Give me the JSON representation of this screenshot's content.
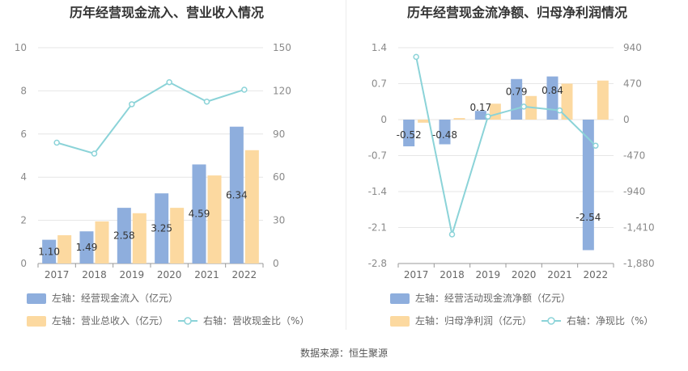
{
  "source_label": "数据来源：恒生聚源",
  "chart_data": [
    {
      "type": "bar",
      "title": "历年经营现金流入、营业收入情况",
      "categories": [
        "2017",
        "2018",
        "2019",
        "2020",
        "2021",
        "2022"
      ],
      "y_left": {
        "ylim": [
          0,
          10
        ],
        "ticks": [
          0,
          2,
          4,
          6,
          8,
          10
        ]
      },
      "y_right": {
        "ylim": [
          0,
          150
        ],
        "ticks": [
          0,
          30,
          60,
          90,
          120,
          150
        ]
      },
      "series": [
        {
          "name": "左轴：经营现金流入（亿元）",
          "type": "bar",
          "axis": "left",
          "color": "#8eaedd",
          "values": [
            1.1,
            1.49,
            2.58,
            3.25,
            4.59,
            6.34
          ],
          "labels": [
            "1.10",
            "1.49",
            "2.58",
            "3.25",
            "4.59",
            "6.34"
          ]
        },
        {
          "name": "左轴：营业总收入（亿元）",
          "type": "bar",
          "axis": "left",
          "color": "#fcd9a0",
          "values": [
            1.31,
            1.95,
            2.33,
            2.58,
            4.08,
            5.25
          ]
        },
        {
          "name": "右轴：营收现金比（%）",
          "type": "line",
          "axis": "right",
          "color": "#8bd3d8",
          "values": [
            84.0,
            76.4,
            110.7,
            126.0,
            112.5,
            120.8
          ]
        }
      ],
      "legend_position": "bottom",
      "grid": true
    },
    {
      "type": "bar",
      "title": "历年经营现金流净额、归母净利润情况",
      "categories": [
        "2017",
        "2018",
        "2019",
        "2020",
        "2021",
        "2022"
      ],
      "y_left": {
        "ylim": [
          -2.8,
          1.4
        ],
        "ticks": [
          1.4,
          0.7,
          0,
          -0.7,
          -1.4,
          -2.1,
          -2.8
        ],
        "tick_labels": [
          "1.4",
          "0.7",
          "0",
          "-0.7",
          "-1.4",
          "-2.1",
          "-2.8"
        ]
      },
      "y_right": {
        "ylim": [
          -1880,
          940
        ],
        "ticks": [
          940,
          470,
          0,
          -470,
          -940,
          -1410,
          -1880
        ],
        "tick_labels": [
          "940",
          "470",
          "0",
          "-470",
          "-940",
          "-1,410",
          "-1,880"
        ]
      },
      "series": [
        {
          "name": "左轴：经营活动现金流净额（亿元）",
          "type": "bar",
          "axis": "left",
          "color": "#8eaedd",
          "values": [
            -0.52,
            -0.48,
            0.17,
            0.79,
            0.84,
            -2.54
          ],
          "labels": [
            "-0.52",
            "-0.48",
            "0.17",
            "0.79",
            "0.84",
            "-2.54"
          ]
        },
        {
          "name": "左轴：归母净利润（亿元）",
          "type": "bar",
          "axis": "left",
          "color": "#fcd9a0",
          "values": [
            -0.06,
            0.03,
            0.31,
            0.46,
            0.7,
            0.76
          ]
        },
        {
          "name": "右轴：净现比（%）",
          "type": "line",
          "axis": "right",
          "color": "#8bd3d8",
          "values": [
            820,
            -1500,
            40,
            170,
            120,
            -340
          ]
        }
      ],
      "legend_position": "bottom",
      "grid": true
    }
  ]
}
